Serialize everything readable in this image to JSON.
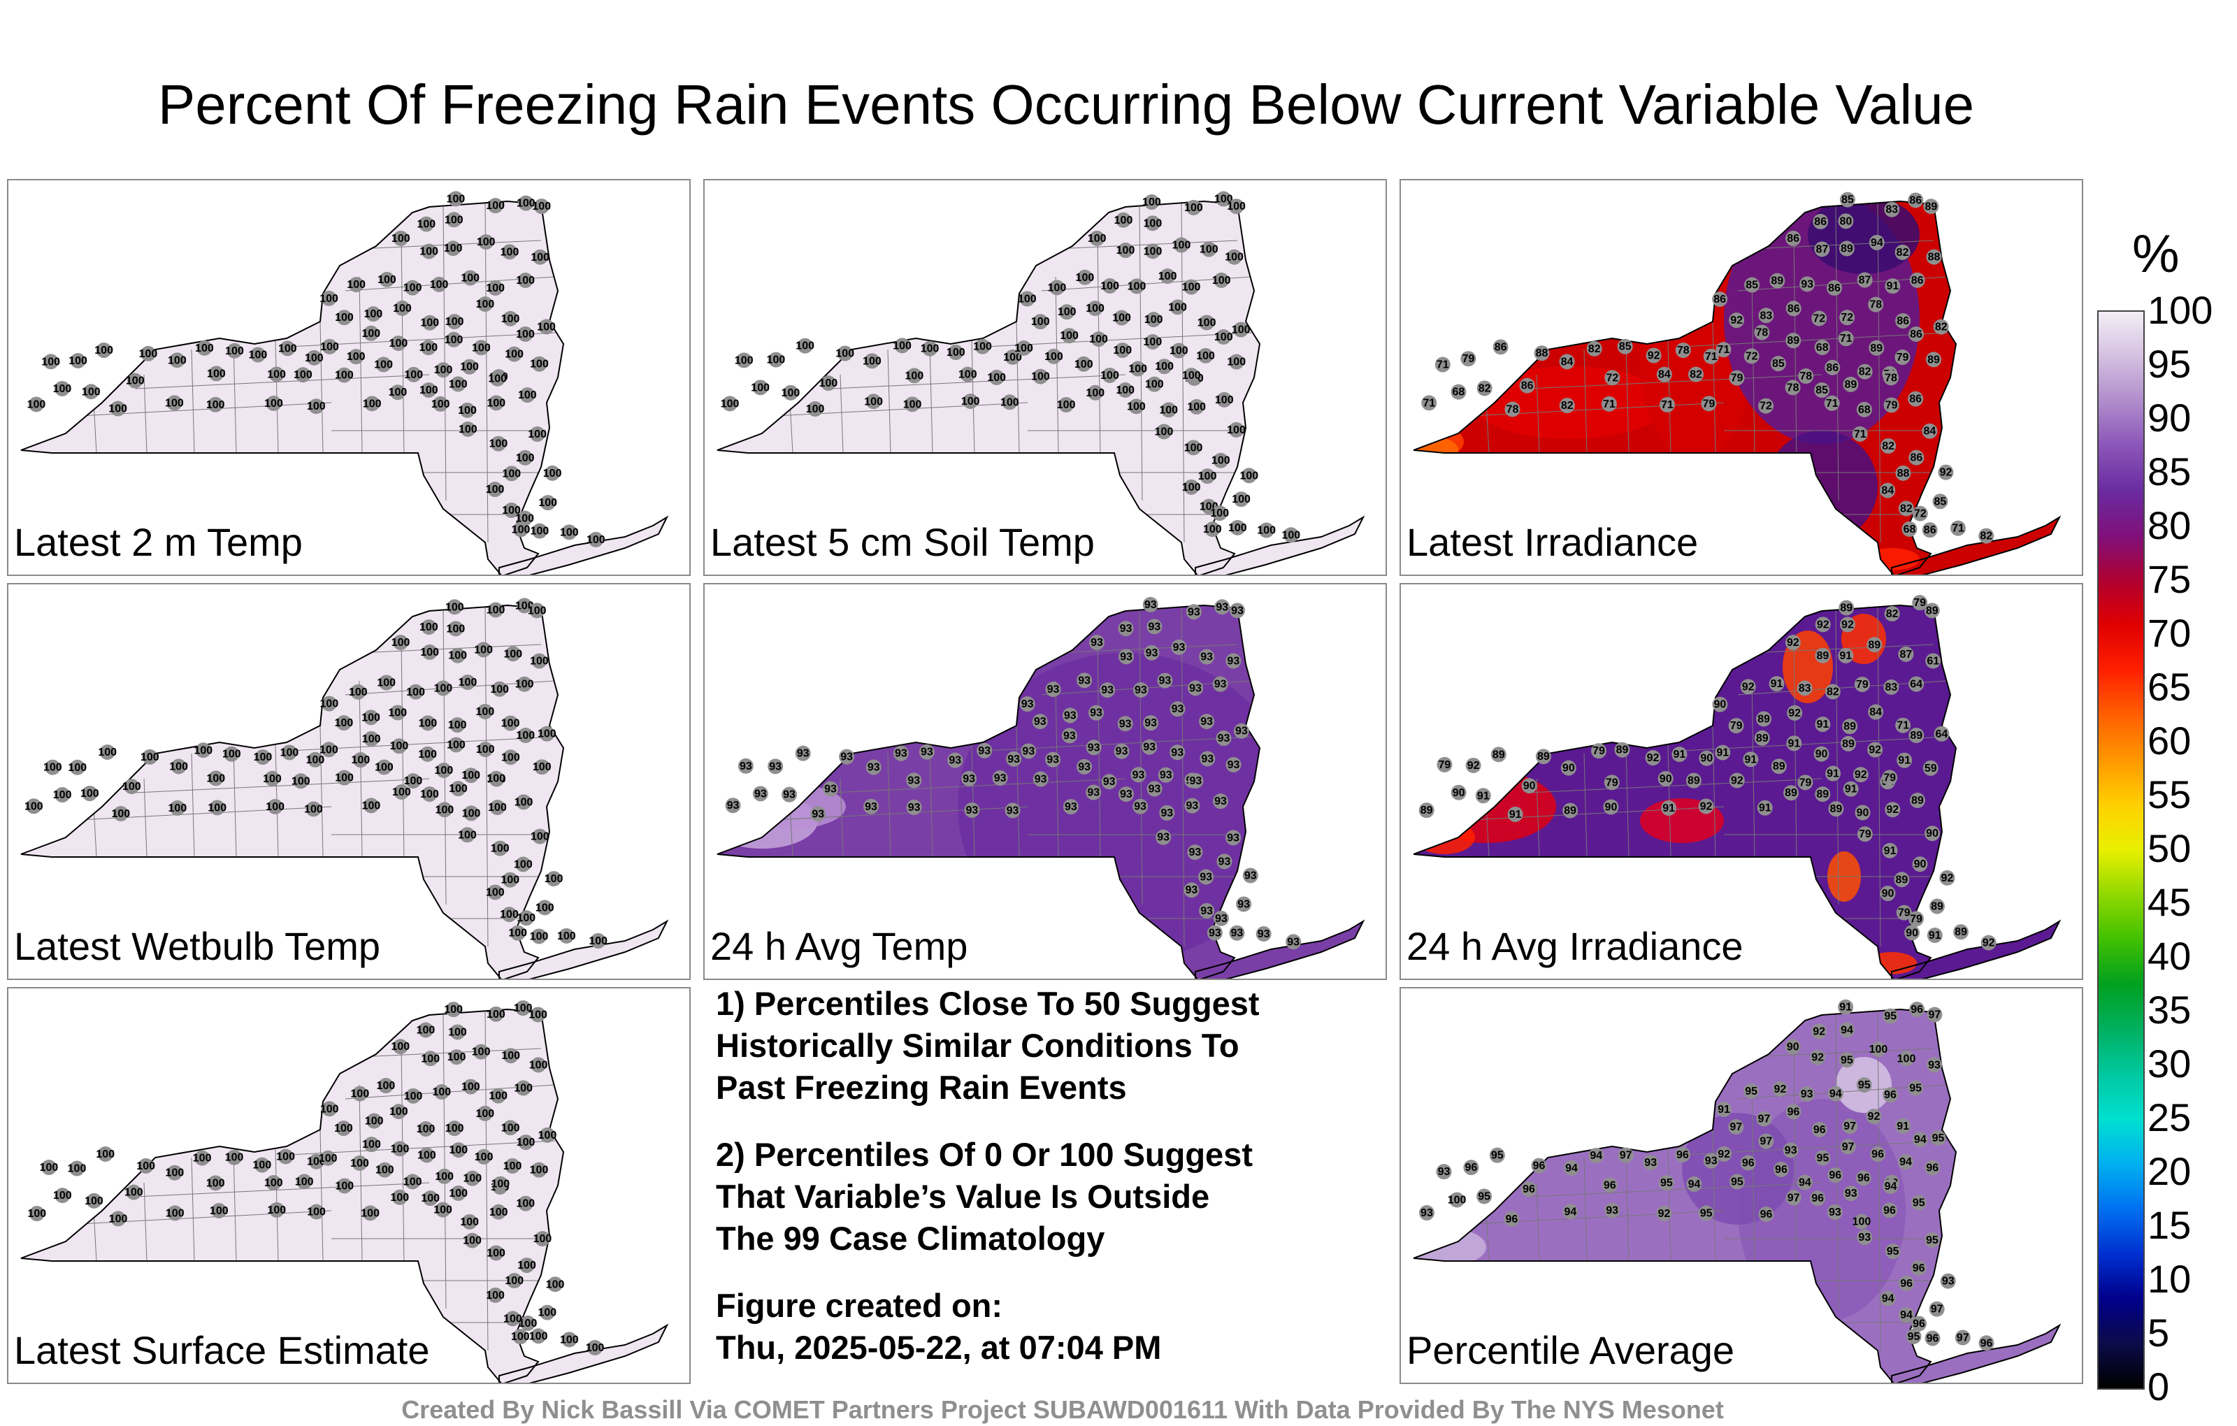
{
  "title": "Percent Of Freezing Rain Events Occurring Below Current Variable Value",
  "panels": [
    {
      "label": "Latest 2 m Temp",
      "field": "flat",
      "fill": "#efe6f1",
      "stations": "100"
    },
    {
      "label": "Latest 5 cm Soil Temp",
      "field": "flat",
      "fill": "#efe6f1",
      "stations": "100"
    },
    {
      "label": "Latest Irradiance",
      "field": "irradiance",
      "fill": "#cc0000",
      "stations": "mixed"
    },
    {
      "label": "Latest Wetbulb Temp",
      "field": "flat",
      "fill": "#efe6f1",
      "stations": "100"
    },
    {
      "label": "24 h Avg Temp",
      "field": "avgtemp",
      "fill": "#7a3fa6",
      "stations": "93"
    },
    {
      "label": "24 h Avg Irradiance",
      "field": "avgirr",
      "fill": "#5b1a92",
      "stations": "mixed"
    },
    {
      "label": "Latest Surface Estimate",
      "field": "flat",
      "fill": "#efe6f1",
      "stations": "100"
    },
    {
      "label": "Percentile Average",
      "field": "average",
      "fill": "#9b6fc0",
      "stations": "mixed"
    }
  ],
  "notes": {
    "line1": "1) Percentiles Close To 50 Suggest",
    "line2": "Historically Similar Conditions To",
    "line3": "Past Freezing Rain Events",
    "line4": "2) Percentiles Of 0 Or 100 Suggest",
    "line5": "That Variable’s Value Is Outside",
    "line6": "The 99 Case Climatology",
    "line7": "Figure created on:",
    "line8": "Thu, 2025-05-22, at 07:04 PM"
  },
  "colorbar": {
    "unit": "%",
    "ticks": [
      "100",
      "95",
      "90",
      "85",
      "80",
      "75",
      "70",
      "65",
      "60",
      "55",
      "50",
      "45",
      "40",
      "35",
      "30",
      "25",
      "20",
      "15",
      "10",
      "5",
      "0"
    ],
    "colors": [
      "#000000",
      "#0b0b4a",
      "#00008b",
      "#0030d0",
      "#0070f0",
      "#00b0f0",
      "#00e0d0",
      "#00c8a0",
      "#00b060",
      "#00a020",
      "#40c000",
      "#90d800",
      "#e8f000",
      "#ffd000",
      "#ff9800",
      "#ff6000",
      "#ff2000",
      "#e00000",
      "#b00030",
      "#80107a",
      "#6a2ba0",
      "#8a55b8",
      "#b08ccc",
      "#d4c0e0",
      "#f3eef6"
    ]
  },
  "credits": "Created By Nick Bassill Via COMET Partners Project SUBAWD001611 With Data Provided By The NYS Mesonet"
}
